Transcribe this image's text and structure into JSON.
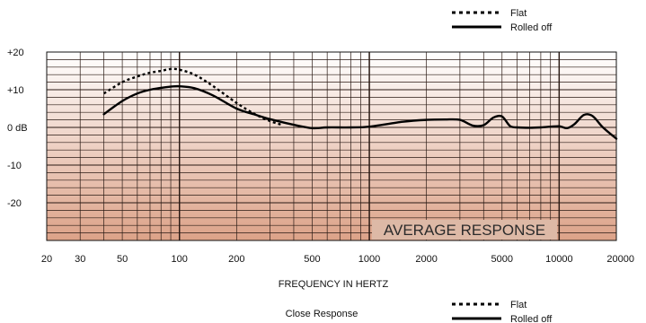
{
  "chart_data": {
    "type": "line",
    "title": "",
    "xlabel": "FREQUENCY IN HERTZ",
    "ylabel": "",
    "caption": "Close Response",
    "panel_label": "AVERAGE RESPONSE",
    "x_scale": "log",
    "xlim": [
      20,
      20000
    ],
    "ylim": [
      -30,
      20
    ],
    "x_ticks": [
      {
        "value": 20,
        "label": "20"
      },
      {
        "value": 30,
        "label": "30"
      },
      {
        "value": 50,
        "label": "50"
      },
      {
        "value": 100,
        "label": "100"
      },
      {
        "value": 200,
        "label": "200"
      },
      {
        "value": 500,
        "label": "500"
      },
      {
        "value": 1000,
        "label": "1000"
      },
      {
        "value": 2000,
        "label": "2000"
      },
      {
        "value": 5000,
        "label": "5000"
      },
      {
        "value": 10000,
        "label": "10000"
      },
      {
        "value": 20000,
        "label": "20000"
      }
    ],
    "y_ticks": [
      {
        "value": 20,
        "label": "+20"
      },
      {
        "value": 10,
        "label": "+10"
      },
      {
        "value": 0,
        "label": "0 dB"
      },
      {
        "value": -10,
        "label": "-10"
      },
      {
        "value": -20,
        "label": "-20"
      }
    ],
    "grid": true,
    "background_gradient": [
      "#ffffff",
      "#dca288"
    ],
    "legend": {
      "placement": "top-right, repeated bottom-right",
      "entries": [
        {
          "label": "Flat",
          "style": "dotted"
        },
        {
          "label": "Rolled off",
          "style": "solid"
        }
      ]
    },
    "series": [
      {
        "name": "Flat",
        "style": "dotted",
        "x": [
          40,
          50,
          60,
          70,
          80,
          90,
          100,
          120,
          150,
          200,
          250,
          300,
          350
        ],
        "y": [
          9,
          12,
          13.5,
          14.5,
          15,
          15.5,
          15.3,
          14,
          11,
          6.5,
          3.5,
          1.7,
          0.6
        ]
      },
      {
        "name": "Rolled off",
        "style": "solid",
        "x": [
          40,
          50,
          60,
          70,
          80,
          90,
          100,
          120,
          150,
          200,
          250,
          300,
          400,
          500,
          600,
          800,
          1000,
          1500,
          2000,
          2500,
          3000,
          3500,
          4000,
          4500,
          5000,
          5500,
          6000,
          7000,
          8000,
          9000,
          10000,
          11000,
          12000,
          13500,
          15000,
          17000,
          20000
        ],
        "y": [
          3.5,
          7,
          9,
          10,
          10.5,
          10.8,
          10.9,
          10.4,
          8.5,
          5,
          3.4,
          2.2,
          0.7,
          -0.2,
          0,
          0,
          0.2,
          1.5,
          2,
          2.1,
          2,
          0.5,
          0.6,
          2.6,
          2.9,
          0.4,
          0,
          -0.1,
          0,
          0.2,
          0.3,
          -0.2,
          0.8,
          3.3,
          3,
          0,
          -3
        ]
      }
    ]
  }
}
